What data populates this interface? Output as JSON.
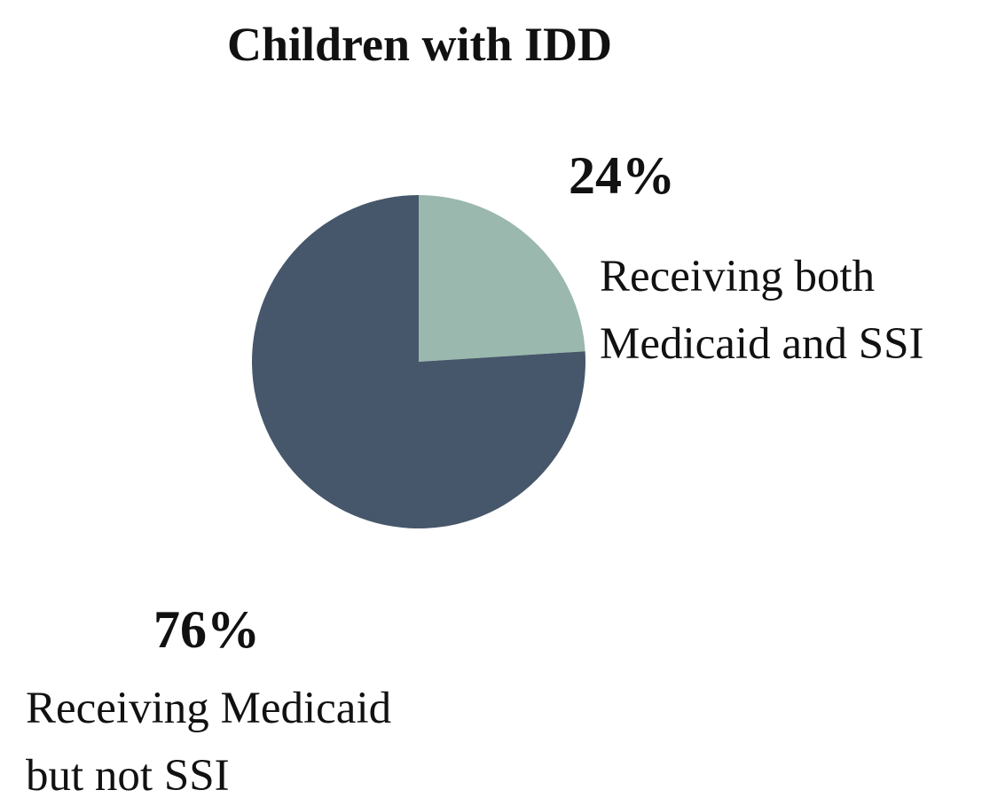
{
  "chart_data": {
    "type": "pie",
    "title": "Children with IDD",
    "slices": [
      {
        "label_lines": [
          "Receiving both",
          "Medicaid and SSI"
        ],
        "value": 24,
        "value_label": "24%",
        "color": "#9ab8ad"
      },
      {
        "label_lines": [
          "Receiving Medicaid",
          "but not SSI"
        ],
        "value": 76,
        "value_label": "76%",
        "color": "#46576b"
      }
    ]
  }
}
